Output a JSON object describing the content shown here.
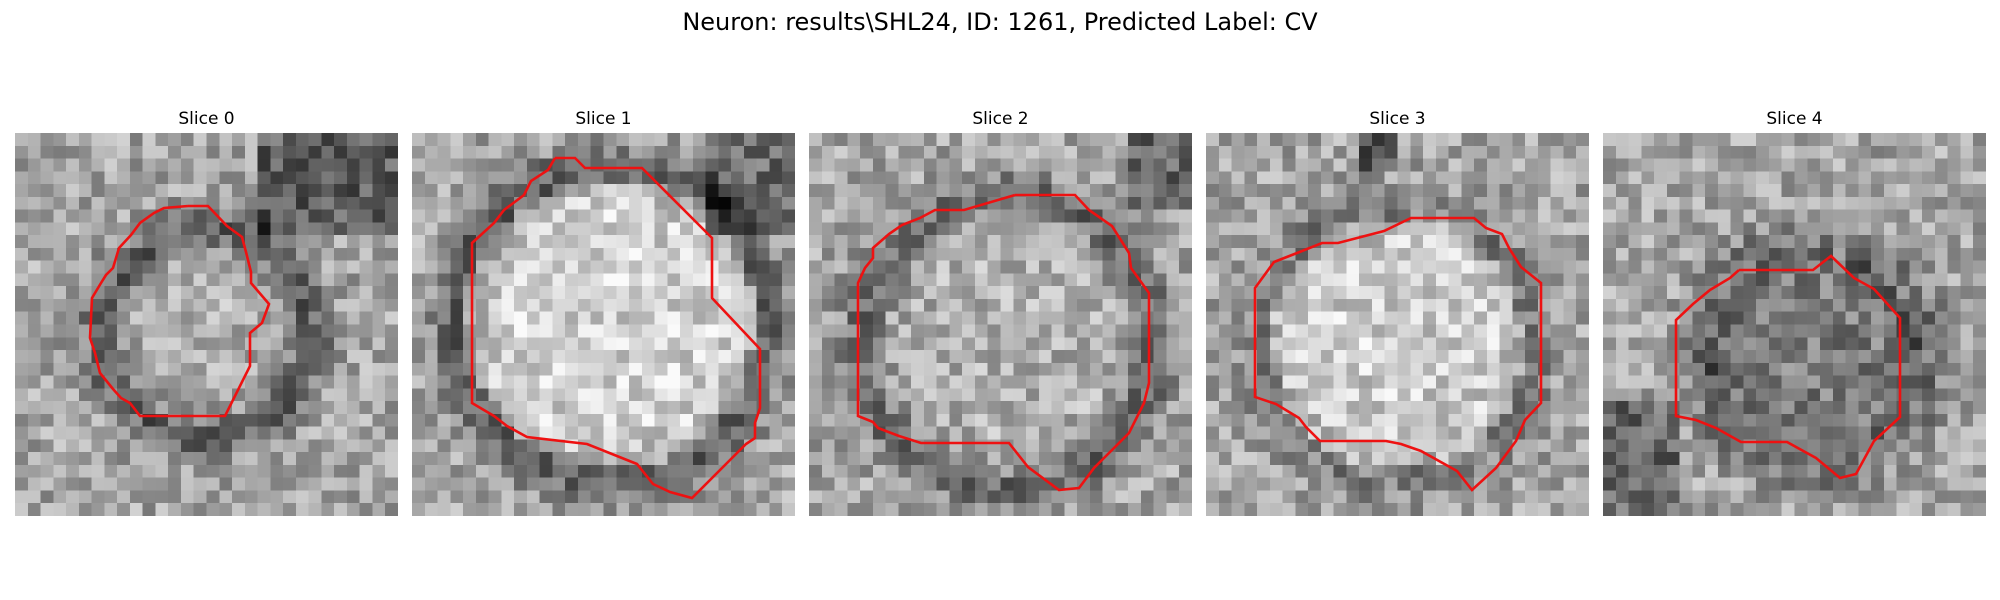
{
  "figure": {
    "title": "Neuron: results\\SHL24, ID: 1261, Predicted Label: CV",
    "contour_color": "#ee1111"
  },
  "slices": [
    {
      "title": "Slice 0"
    },
    {
      "title": "Slice 1"
    },
    {
      "title": "Slice 2"
    },
    {
      "title": "Slice 3"
    },
    {
      "title": "Slice 4"
    }
  ]
}
